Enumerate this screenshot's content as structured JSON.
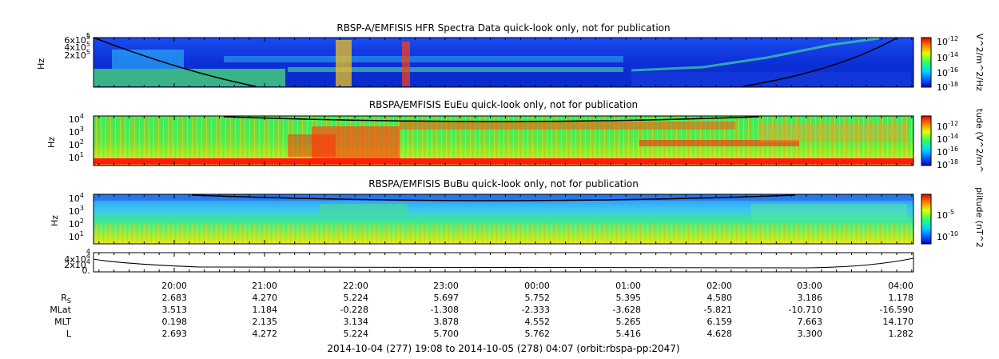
{
  "chart_data": [
    {
      "type": "heatmap",
      "title": "RBSP-A/EMFISIS  HFR Spectra Data quick-look only, not for publication",
      "ylabel": "Hz",
      "y_scale": "linear",
      "y_ticks": [
        {
          "base": "2x10",
          "exp": "5"
        },
        {
          "base": "4x10",
          "exp": "5"
        },
        {
          "base": "6x10",
          "exp": "5"
        }
      ],
      "y_top_tick": "5",
      "colorbar": {
        "label": "V^2/m^2/Hz",
        "scale": "log",
        "ticks": [
          {
            "base": "10",
            "exp": "-12"
          },
          {
            "base": "10",
            "exp": "-14"
          },
          {
            "base": "10",
            "exp": "-16"
          },
          {
            "base": "10",
            "exp": "-18"
          }
        ]
      }
    },
    {
      "type": "heatmap",
      "title": "RBSPA/EMFISIS  EuEu quick-look only, not for publication",
      "ylabel": "Hz",
      "y_scale": "log",
      "y_ticks": [
        {
          "base": "10",
          "exp": "4"
        },
        {
          "base": "10",
          "exp": "3"
        },
        {
          "base": "10",
          "exp": "2"
        },
        {
          "base": "10",
          "exp": "1"
        }
      ],
      "colorbar": {
        "label": "tude (V^2/m^",
        "scale": "log",
        "ticks": [
          {
            "base": "10",
            "exp": "-12"
          },
          {
            "base": "10",
            "exp": "-14"
          },
          {
            "base": "10",
            "exp": "-16"
          },
          {
            "base": "10",
            "exp": "-18"
          }
        ]
      }
    },
    {
      "type": "heatmap",
      "title": "RBSPA/EMFISIS  BuBu quick-look only, not for publication",
      "ylabel": "Hz",
      "y_scale": "log",
      "y_ticks": [
        {
          "base": "10",
          "exp": "4"
        },
        {
          "base": "10",
          "exp": "3"
        },
        {
          "base": "10",
          "exp": "2"
        },
        {
          "base": "10",
          "exp": "1"
        }
      ],
      "colorbar": {
        "label": "plitude (nT^2",
        "scale": "log",
        "ticks": [
          {
            "base": "10",
            "exp": "-5"
          },
          {
            "base": "10",
            "exp": "-10"
          }
        ]
      }
    },
    {
      "type": "line",
      "y_ticks": [
        {
          "base": "4x10",
          "exp": "4"
        },
        {
          "base": "2x10",
          "exp": "4"
        },
        {
          "base": "0.",
          "exp": ""
        }
      ],
      "y_top_tick": "4"
    }
  ],
  "x_axis": {
    "tick_labels": [
      "20:00",
      "21:00",
      "22:00",
      "23:00",
      "00:00",
      "01:00",
      "02:00",
      "03:00",
      "04:00"
    ],
    "start": "2014-10-04 19:08",
    "end": "2014-10-05 04:07"
  },
  "ephemeris": [
    {
      "label": "R",
      "sub": "S",
      "values": [
        "2.683",
        "4.270",
        "5.224",
        "5.697",
        "5.752",
        "5.395",
        "4.580",
        "3.186",
        "1.178"
      ]
    },
    {
      "label": "MLat",
      "sub": "",
      "values": [
        "3.513",
        "1.184",
        "-0.228",
        "-1.308",
        "-2.333",
        "-3.628",
        "-5.821",
        "-10.710",
        "-16.590"
      ]
    },
    {
      "label": "MLT",
      "sub": "",
      "values": [
        "0.198",
        "2.135",
        "3.134",
        "3.878",
        "4.552",
        "5.265",
        "6.159",
        "7.663",
        "14.170"
      ]
    },
    {
      "label": "L",
      "sub": "",
      "values": [
        "2.693",
        "4.272",
        "5.224",
        "5.700",
        "5.762",
        "5.416",
        "4.628",
        "3.300",
        "1.282"
      ]
    }
  ],
  "footer": "2014-10-04 (277) 19:08 to 2014-10-05 (278) 04:07 (orbit:rbspa-pp:2047)",
  "colors": {
    "background_blue": "#1238d8",
    "green": "#4ee65a",
    "red": "#ff2a10",
    "trace": "#000000"
  }
}
